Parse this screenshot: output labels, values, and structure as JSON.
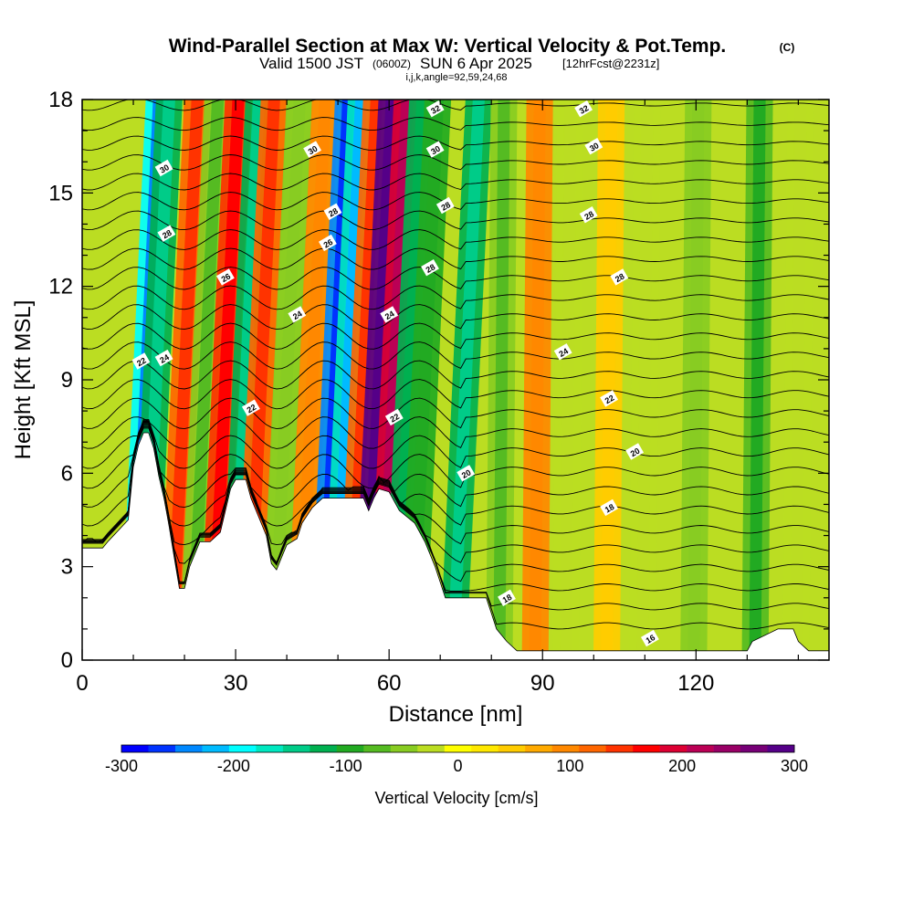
{
  "header": {
    "title": "Wind-Parallel Section at Max W: Vertical Velocity & Pot.Temp.",
    "copyright": "(C)",
    "valid_prefix": "Valid 1500 JST",
    "valid_utc": "(0600Z)",
    "valid_date": "SUN 6 Apr 2025",
    "forecast_tag": "[12hrFcst@2231z]",
    "indices": "i,j,k,angle=92,59,24,68"
  },
  "chart_data": {
    "type": "heatmap",
    "xlabel": "Distance [nm]",
    "ylabel": "Height [Kft MSL]",
    "xlim": [
      0,
      146
    ],
    "ylim": [
      0,
      18
    ],
    "x_ticks": [
      0,
      30,
      60,
      90,
      120
    ],
    "y_ticks": [
      0,
      3,
      6,
      9,
      12,
      15,
      18
    ],
    "colorbar": {
      "label": "Vertical Velocity [cm/s]",
      "range": [
        -300,
        300
      ],
      "ticks": [
        -300,
        -200,
        -100,
        0,
        100,
        200,
        300
      ],
      "colors": [
        "#0000ff",
        "#0033ff",
        "#0088ff",
        "#00bbff",
        "#00ffff",
        "#00e8c0",
        "#00cc88",
        "#00b050",
        "#22aa22",
        "#55bb22",
        "#88cc22",
        "#bbdd22",
        "#ffff00",
        "#ffe800",
        "#ffcc00",
        "#ffaa00",
        "#ff8800",
        "#ff6600",
        "#ff3300",
        "#ff0000",
        "#dd0033",
        "#bb0055",
        "#990066",
        "#770077",
        "#550088"
      ]
    },
    "velocity_bands": [
      {
        "x": 12.5,
        "value": -200
      },
      {
        "x": 14.5,
        "value": -120
      },
      {
        "x": 20,
        "value": 120
      },
      {
        "x": 24,
        "value": -60
      },
      {
        "x": 28,
        "value": 150
      },
      {
        "x": 32,
        "value": -130
      },
      {
        "x": 35,
        "value": 130
      },
      {
        "x": 40,
        "value": -40
      },
      {
        "x": 45,
        "value": 90
      },
      {
        "x": 49.5,
        "value": -230
      },
      {
        "x": 52,
        "value": -180
      },
      {
        "x": 55,
        "value": 130
      },
      {
        "x": 58,
        "value": 280
      },
      {
        "x": 61,
        "value": 190
      },
      {
        "x": 64,
        "value": -110
      },
      {
        "x": 67,
        "value": -90
      },
      {
        "x": 75,
        "value": -130
      },
      {
        "x": 82,
        "value": -60
      },
      {
        "x": 89,
        "value": 90
      },
      {
        "x": 95,
        "value": -30
      },
      {
        "x": 103,
        "value": 40
      },
      {
        "x": 110,
        "value": -30
      },
      {
        "x": 120,
        "value": -45
      },
      {
        "x": 132,
        "value": -80
      },
      {
        "x": 140,
        "value": -30
      }
    ],
    "terrain": [
      {
        "x": 0,
        "y": 3.6
      },
      {
        "x": 4,
        "y": 3.6
      },
      {
        "x": 5,
        "y": 3.8
      },
      {
        "x": 9,
        "y": 4.5
      },
      {
        "x": 10,
        "y": 6.2
      },
      {
        "x": 11,
        "y": 6.9
      },
      {
        "x": 12,
        "y": 7.3
      },
      {
        "x": 13,
        "y": 7.3
      },
      {
        "x": 14,
        "y": 6.8
      },
      {
        "x": 15,
        "y": 5.9
      },
      {
        "x": 16,
        "y": 5.2
      },
      {
        "x": 17,
        "y": 4.3
      },
      {
        "x": 18,
        "y": 3.3
      },
      {
        "x": 19,
        "y": 2.3
      },
      {
        "x": 20,
        "y": 2.3
      },
      {
        "x": 21,
        "y": 3.0
      },
      {
        "x": 23,
        "y": 3.8
      },
      {
        "x": 25,
        "y": 3.8
      },
      {
        "x": 27,
        "y": 4.1
      },
      {
        "x": 28,
        "y": 4.8
      },
      {
        "x": 29,
        "y": 5.5
      },
      {
        "x": 30,
        "y": 5.8
      },
      {
        "x": 32,
        "y": 5.8
      },
      {
        "x": 33,
        "y": 5.2
      },
      {
        "x": 34,
        "y": 4.8
      },
      {
        "x": 36,
        "y": 4.0
      },
      {
        "x": 37,
        "y": 3.1
      },
      {
        "x": 38,
        "y": 2.9
      },
      {
        "x": 39,
        "y": 3.3
      },
      {
        "x": 40,
        "y": 3.7
      },
      {
        "x": 42,
        "y": 3.9
      },
      {
        "x": 43,
        "y": 4.4
      },
      {
        "x": 45,
        "y": 4.9
      },
      {
        "x": 47,
        "y": 5.2
      },
      {
        "x": 55,
        "y": 5.2
      },
      {
        "x": 56,
        "y": 4.8
      },
      {
        "x": 57,
        "y": 5.2
      },
      {
        "x": 58,
        "y": 5.5
      },
      {
        "x": 60,
        "y": 5.4
      },
      {
        "x": 62,
        "y": 4.8
      },
      {
        "x": 65,
        "y": 4.4
      },
      {
        "x": 67,
        "y": 3.8
      },
      {
        "x": 69,
        "y": 3.0
      },
      {
        "x": 70,
        "y": 2.5
      },
      {
        "x": 71,
        "y": 2.0
      },
      {
        "x": 79,
        "y": 2.0
      },
      {
        "x": 80,
        "y": 1.5
      },
      {
        "x": 81,
        "y": 1.0
      },
      {
        "x": 83,
        "y": 0.6
      },
      {
        "x": 85,
        "y": 0.3
      },
      {
        "x": 130,
        "y": 0.3
      },
      {
        "x": 131,
        "y": 0.6
      },
      {
        "x": 136,
        "y": 1.0
      },
      {
        "x": 139,
        "y": 1.0
      },
      {
        "x": 140,
        "y": 0.6
      },
      {
        "x": 142,
        "y": 0.3
      },
      {
        "x": 146,
        "y": 0.3
      }
    ],
    "contour_labels": [
      {
        "text": "32",
        "x": 69,
        "y": 17.7
      },
      {
        "text": "32",
        "x": 98,
        "y": 17.7
      },
      {
        "text": "30",
        "x": 16,
        "y": 15.8
      },
      {
        "text": "30",
        "x": 45,
        "y": 16.4
      },
      {
        "text": "30",
        "x": 69,
        "y": 16.4
      },
      {
        "text": "30",
        "x": 100,
        "y": 16.5
      },
      {
        "text": "28",
        "x": 49,
        "y": 14.4
      },
      {
        "text": "28",
        "x": 71,
        "y": 14.6
      },
      {
        "text": "28",
        "x": 99,
        "y": 14.3
      },
      {
        "text": "28",
        "x": 16.5,
        "y": 13.7
      },
      {
        "text": "26",
        "x": 48,
        "y": 13.4
      },
      {
        "text": "28",
        "x": 68,
        "y": 12.6
      },
      {
        "text": "28",
        "x": 105,
        "y": 12.3
      },
      {
        "text": "26",
        "x": 28,
        "y": 12.3
      },
      {
        "text": "24",
        "x": 60,
        "y": 11.1
      },
      {
        "text": "24",
        "x": 42,
        "y": 11.1
      },
      {
        "text": "24",
        "x": 94,
        "y": 9.9
      },
      {
        "text": "24",
        "x": 16,
        "y": 9.7
      },
      {
        "text": "22",
        "x": 11.5,
        "y": 9.6
      },
      {
        "text": "22",
        "x": 103,
        "y": 8.4
      },
      {
        "text": "22",
        "x": 33,
        "y": 8.1
      },
      {
        "text": "22",
        "x": 61,
        "y": 7.8
      },
      {
        "text": "20",
        "x": 108,
        "y": 6.7
      },
      {
        "text": "20",
        "x": 75,
        "y": 6.0
      },
      {
        "text": "18",
        "x": 103,
        "y": 4.9
      },
      {
        "text": "18",
        "x": 83,
        "y": 2.0
      },
      {
        "text": "16",
        "x": 111,
        "y": 0.7
      }
    ]
  }
}
